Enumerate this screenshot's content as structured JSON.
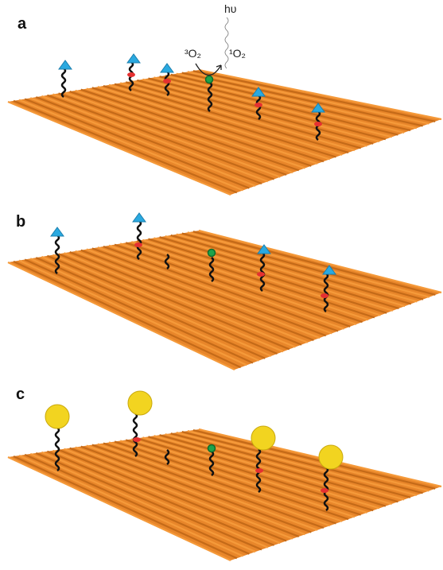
{
  "panels": [
    {
      "label": "a"
    },
    {
      "label": "b"
    },
    {
      "label": "c"
    }
  ],
  "light": "hυ",
  "reactant": "³O₂",
  "product": "¹O₂"
}
